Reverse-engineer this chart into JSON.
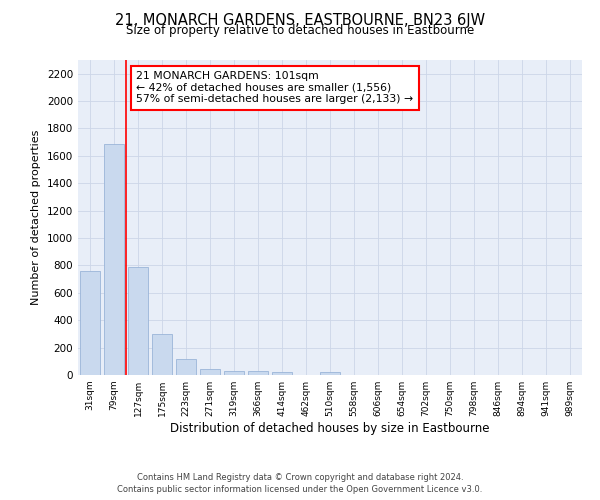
{
  "title": "21, MONARCH GARDENS, EASTBOURNE, BN23 6JW",
  "subtitle": "Size of property relative to detached houses in Eastbourne",
  "xlabel": "Distribution of detached houses by size in Eastbourne",
  "ylabel": "Number of detached properties",
  "categories": [
    "31sqm",
    "79sqm",
    "127sqm",
    "175sqm",
    "223sqm",
    "271sqm",
    "319sqm",
    "366sqm",
    "414sqm",
    "462sqm",
    "510sqm",
    "558sqm",
    "606sqm",
    "654sqm",
    "702sqm",
    "750sqm",
    "798sqm",
    "846sqm",
    "894sqm",
    "941sqm",
    "989sqm"
  ],
  "bar_heights": [
    760,
    1690,
    790,
    300,
    115,
    45,
    30,
    30,
    20,
    0,
    20,
    0,
    0,
    0,
    0,
    0,
    0,
    0,
    0,
    0,
    0
  ],
  "bar_color": "#c9d9ee",
  "bar_edge_color": "#9ab5d8",
  "ylim": [
    0,
    2300
  ],
  "yticks": [
    0,
    200,
    400,
    600,
    800,
    1000,
    1200,
    1400,
    1600,
    1800,
    2000,
    2200
  ],
  "red_line_x": 1.5,
  "annotation_text": "21 MONARCH GARDENS: 101sqm\n← 42% of detached houses are smaller (1,556)\n57% of semi-detached houses are larger (2,133) →",
  "grid_color": "#ccd6e8",
  "background_color": "#e8eef8",
  "footer_line1": "Contains HM Land Registry data © Crown copyright and database right 2024.",
  "footer_line2": "Contains public sector information licensed under the Open Government Licence v3.0."
}
